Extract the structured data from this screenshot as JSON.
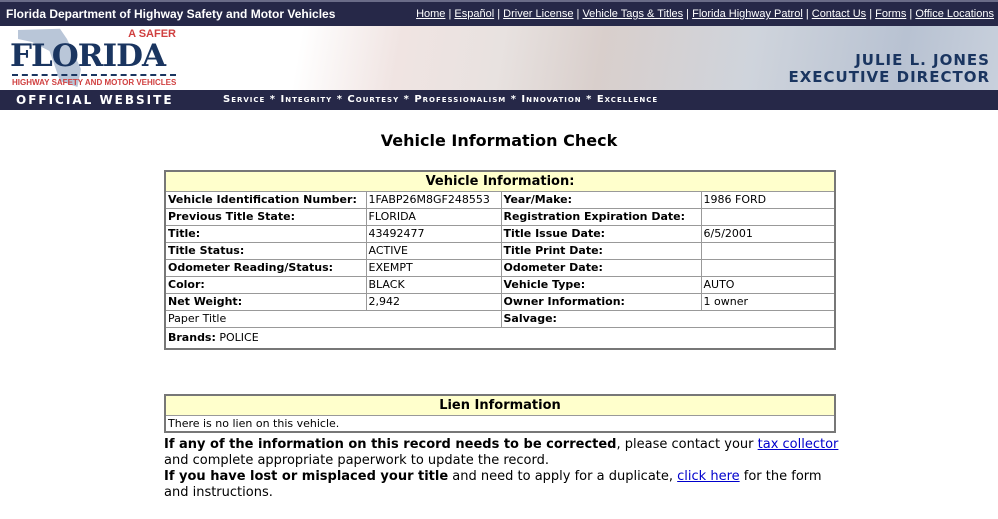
{
  "header": {
    "agency": "Florida Department of Highway Safety and Motor Vehicles",
    "links": [
      "Home",
      "Español",
      "Driver License",
      "Vehicle Tags & Titles",
      "Florida Highway Patrol",
      "Contact Us",
      "Forms",
      "Office Locations"
    ]
  },
  "logo": {
    "tagline": "A SAFER",
    "word": "FLORIDA",
    "sub": "HIGHWAY SAFETY AND MOTOR VEHICLES"
  },
  "director": {
    "name": "JULIE L. JONES",
    "title": "EXECUTIVE DIRECTOR"
  },
  "nav": {
    "official": "OFFICIAL WEBSITE",
    "values": "Service * Integrity * Courtesy * Professionalism * Innovation * Excellence"
  },
  "page_title": "Vehicle Information Check",
  "vehicle": {
    "heading": "Vehicle Information:",
    "rows": [
      [
        "Vehicle Identification Number:",
        "1FABP26M8GF248553",
        "Year/Make:",
        "1986 FORD"
      ],
      [
        "Previous Title State:",
        "FLORIDA",
        "Registration Expiration Date:",
        ""
      ],
      [
        "Title:",
        "43492477",
        "Title Issue Date:",
        "6/5/2001"
      ],
      [
        "Title Status:",
        "ACTIVE",
        "Title Print Date:",
        ""
      ],
      [
        "Odometer Reading/Status:",
        "EXEMPT",
        "Odometer Date:",
        ""
      ],
      [
        "Color:",
        "BLACK",
        "Vehicle Type:",
        "AUTO"
      ],
      [
        "Net Weight:",
        "2,942",
        "Owner Information:",
        "1 owner"
      ]
    ],
    "paper_title": "Paper Title",
    "salvage_label": "Salvage:",
    "brands_label": "Brands:",
    "brands_value": "POLICE"
  },
  "lien": {
    "heading": "Lien Information",
    "text": "There is no lien on this vehicle."
  },
  "notes": {
    "p1_bold": "If any of the information on this record needs to be corrected",
    "p1_a": ", please contact your ",
    "p1_link": "tax collector",
    "p1_b": " and complete appropriate paperwork to update the record.",
    "p2_bold": "If you have lost or misplaced your title",
    "p2_a": " and need to apply for a duplicate, ",
    "p2_link": "click here",
    "p2_b": " for the form and instructions."
  },
  "colors": {
    "navy": "#262848",
    "header_yellow": "#ffffcc",
    "link": "#0000cc"
  }
}
